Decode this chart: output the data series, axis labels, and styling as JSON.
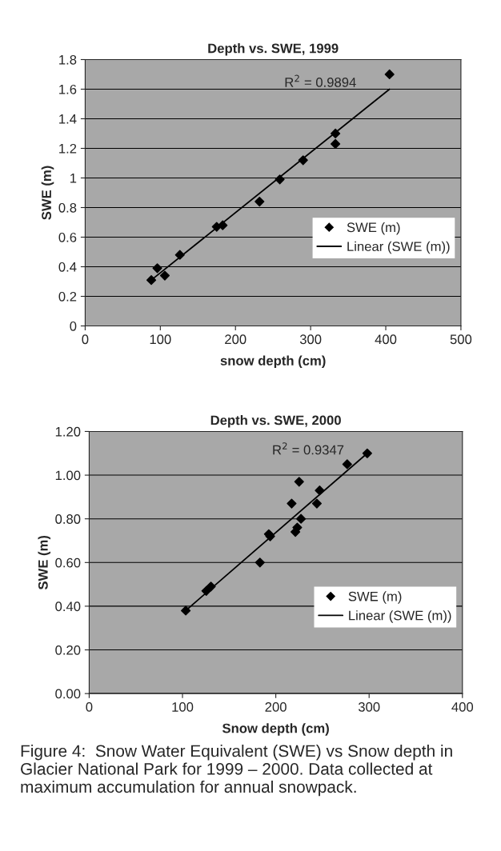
{
  "chart_data": [
    {
      "type": "scatter",
      "title": "Depth vs. SWE, 1999",
      "xlabel": "snow depth (cm)",
      "ylabel": "SWE (m)",
      "xlim": [
        0,
        500
      ],
      "xticks": [
        0,
        100,
        200,
        300,
        400,
        500
      ],
      "ylim": [
        0,
        1.8
      ],
      "yticks": [
        0,
        0.2,
        0.4,
        0.6,
        0.8,
        1,
        1.2,
        1.4,
        1.6,
        1.8
      ],
      "grid": "y",
      "legend": "right",
      "series": [
        {
          "name": "SWE (m)",
          "marker": "diamond",
          "color": "#000000",
          "x": [
            88,
            96,
            106,
            126,
            175,
            183,
            232,
            259,
            290,
            333,
            333,
            405
          ],
          "values": [
            0.31,
            0.39,
            0.34,
            0.48,
            0.67,
            0.68,
            0.84,
            0.99,
            1.12,
            1.3,
            1.23,
            1.7
          ]
        },
        {
          "name": "Linear (SWE (m))",
          "type": "line",
          "color": "#000000",
          "x": [
            88,
            405
          ],
          "values": [
            0.31,
            1.6
          ]
        }
      ],
      "annotations": [
        "R$^{2}$ = 0.9894"
      ]
    },
    {
      "type": "scatter",
      "title": "Depth vs. SWE, 2000",
      "xlabel": "Snow depth (cm)",
      "ylabel": "SWE (m)",
      "xlim": [
        0,
        400
      ],
      "xticks": [
        0,
        100,
        200,
        300,
        400
      ],
      "ylim": [
        0,
        1.2
      ],
      "yticks": [
        {
          "value": 0,
          "label": "0.00"
        },
        {
          "value": 0.2,
          "label": "0.20"
        },
        {
          "value": 0.4,
          "label": "0.40"
        },
        {
          "value": 0.6,
          "label": "0.60"
        },
        {
          "value": 0.8,
          "label": "0.80"
        },
        {
          "value": 1.0,
          "label": "1.00"
        },
        {
          "value": 1.2,
          "label": "1.20"
        }
      ],
      "grid": "y",
      "legend": "right",
      "series": [
        {
          "name": "SWE (m)",
          "marker": "diamond",
          "color": "#000000",
          "x": [
            103.5,
            125.5,
            130.5,
            183,
            192.5,
            194,
            217,
            225,
            221,
            223,
            227,
            244,
            247,
            276.5,
            298
          ],
          "values": [
            0.38,
            0.47,
            0.49,
            0.6,
            0.73,
            0.72,
            0.87,
            0.97,
            0.74,
            0.76,
            0.8,
            0.87,
            0.93,
            1.05,
            1.1
          ]
        },
        {
          "name": "Linear (SWE (m))",
          "type": "line",
          "color": "#000000",
          "x": [
            103.5,
            298
          ],
          "values": [
            0.38,
            1.1
          ]
        }
      ],
      "annotations": [
        "R$^{2}$ = 0.9347",
        "Figure 4:  Snow Water Equivalent (SWE) vs Snow depth in Glacier National Park for 1999 – 2000. Data collected at maximum accumulation for annual snowpack."
      ]
    }
  ]
}
